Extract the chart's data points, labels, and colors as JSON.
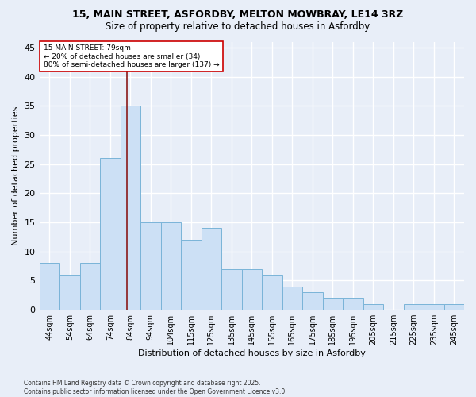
{
  "title_line1": "15, MAIN STREET, ASFORDBY, MELTON MOWBRAY, LE14 3RZ",
  "title_line2": "Size of property relative to detached houses in Asfordby",
  "xlabel": "Distribution of detached houses by size in Asfordby",
  "ylabel": "Number of detached properties",
  "footnote": "Contains HM Land Registry data © Crown copyright and database right 2025.\nContains public sector information licensed under the Open Government Licence v3.0.",
  "bin_labels": [
    "44sqm",
    "54sqm",
    "64sqm",
    "74sqm",
    "84sqm",
    "94sqm",
    "104sqm",
    "115sqm",
    "125sqm",
    "135sqm",
    "145sqm",
    "155sqm",
    "165sqm",
    "175sqm",
    "185sqm",
    "195sqm",
    "205sqm",
    "215sqm",
    "225sqm",
    "235sqm",
    "245sqm"
  ],
  "values": [
    8,
    6,
    8,
    26,
    35,
    15,
    15,
    12,
    14,
    7,
    7,
    6,
    4,
    3,
    2,
    2,
    1,
    0,
    1,
    1,
    1
  ],
  "bar_color": "#cce0f5",
  "bar_edge_color": "#7ab4d8",
  "vline_x_idx": 3.82,
  "vline_color": "#8b1a1a",
  "annotation_text": "15 MAIN STREET: 79sqm\n← 20% of detached houses are smaller (34)\n80% of semi-detached houses are larger (137) →",
  "annotation_box_color": "white",
  "annotation_box_edge": "#cc0000",
  "ylim": [
    0,
    46
  ],
  "yticks": [
    0,
    5,
    10,
    15,
    20,
    25,
    30,
    35,
    40,
    45
  ],
  "bg_color": "#e8eef8",
  "grid_color": "white",
  "title_fontsize": 9,
  "subtitle_fontsize": 8.5,
  "ylabel_fontsize": 8,
  "xlabel_fontsize": 8,
  "tick_fontsize": 7,
  "ytick_fontsize": 8,
  "footnote_fontsize": 5.5,
  "annot_fontsize": 6.5
}
